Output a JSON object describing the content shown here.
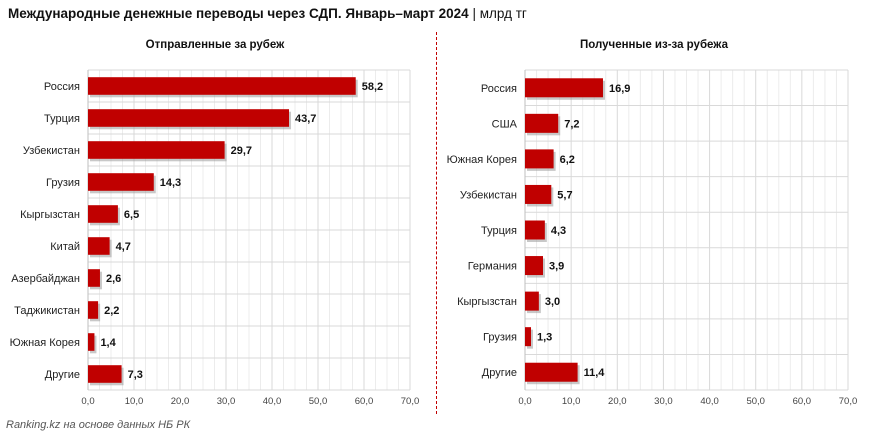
{
  "header": {
    "title": "Международные денежные переводы через СДП. Январь–март 2024",
    "separator": "|",
    "unit": "млрд тг"
  },
  "footer": {
    "source": "Ranking.kz на основе данных НБ РК"
  },
  "colors": {
    "bar": "#c00000",
    "bar_shadow": "#9a9a9a",
    "grid": "#d9d9d9",
    "divider": "#c00000"
  },
  "chart_data": [
    {
      "type": "bar",
      "orientation": "horizontal",
      "title": "Отправленные за рубеж",
      "categories": [
        "Россия",
        "Турция",
        "Узбекистан",
        "Грузия",
        "Кыргызстан",
        "Китай",
        "Азербайджан",
        "Таджикистан",
        "Южная Корея",
        "Другие"
      ],
      "values": [
        58.2,
        43.7,
        29.7,
        14.3,
        6.5,
        4.7,
        2.6,
        2.2,
        1.4,
        7.3
      ],
      "value_labels": [
        "58,2",
        "43,7",
        "29,7",
        "14,3",
        "6,5",
        "4,7",
        "2,6",
        "2,2",
        "1,4",
        "7,3"
      ],
      "xlim": [
        0,
        70
      ],
      "ticks": [
        "0,0",
        "10,0",
        "20,0",
        "30,0",
        "40,0",
        "50,0",
        "60,0",
        "70,0"
      ],
      "xlabel": "",
      "ylabel": "",
      "grid": true
    },
    {
      "type": "bar",
      "orientation": "horizontal",
      "title": "Полученные из-за рубежа",
      "categories": [
        "Россия",
        "США",
        "Южная Корея",
        "Узбекистан",
        "Турция",
        "Германия",
        "Кыргызстан",
        "Грузия",
        "Другие"
      ],
      "values": [
        16.9,
        7.2,
        6.2,
        5.7,
        4.3,
        3.9,
        3.0,
        1.3,
        11.4
      ],
      "value_labels": [
        "16,9",
        "7,2",
        "6,2",
        "5,7",
        "4,3",
        "3,9",
        "3,0",
        "1,3",
        "11,4"
      ],
      "xlim": [
        0,
        70
      ],
      "ticks": [
        "0,0",
        "10,0",
        "20,0",
        "30,0",
        "40,0",
        "50,0",
        "60,0",
        "70,0"
      ],
      "xlabel": "",
      "ylabel": "",
      "grid": true
    }
  ]
}
